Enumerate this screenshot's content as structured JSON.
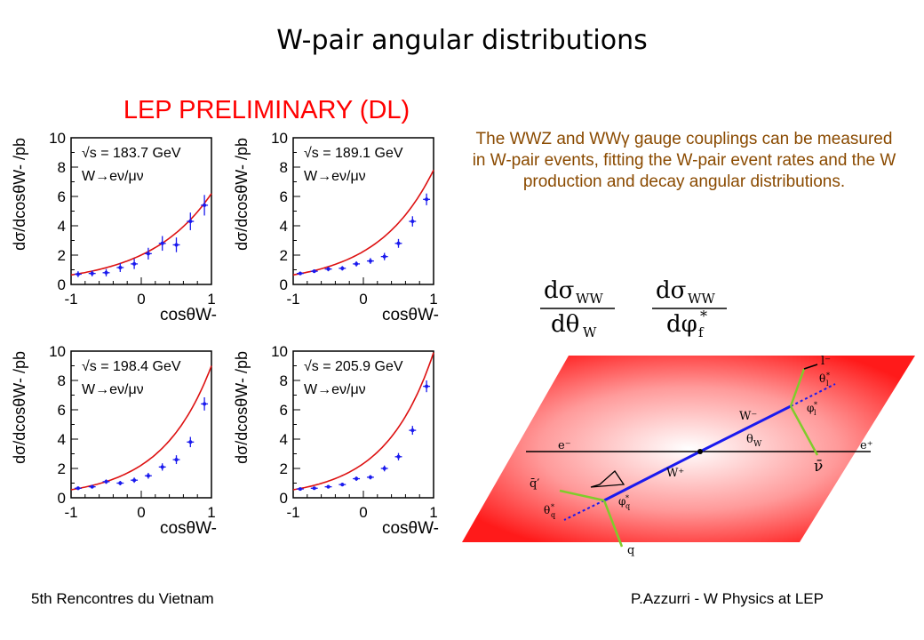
{
  "slide": {
    "title": "W-pair angular distributions",
    "subtitle": "LEP PRELIMINARY (DL)",
    "description": "The WWZ and WWγ gauge couplings can be measured in W-pair events, fitting the W-pair event rates and the W production and decay angular distributions.",
    "footer_left": "5th Rencontres du Vietnam",
    "footer_right": "P.Azzurri - W Physics at LEP",
    "formula1": {
      "numerator": "dσ",
      "num_sub": "WW",
      "denominator": "dθ",
      "den_sub": "W"
    },
    "formula2": {
      "numerator": "dσ",
      "num_sub": "WW",
      "denominator": "dφ",
      "den_sub": "f",
      "den_sup": "*"
    },
    "diagram": {
      "labels": [
        "e⁻",
        "e⁺",
        "W⁻",
        "W⁺",
        "θ",
        "W",
        "q",
        "q̄′",
        "ν̄",
        "l⁻",
        "θ",
        "l",
        "*",
        "φ",
        "l",
        "*",
        "θ",
        "q",
        "*",
        "φ",
        "q",
        "*"
      ],
      "colors": {
        "plane": "#ff1a1a",
        "plane_center": "#ffffff",
        "w_line": "#1a1aee",
        "decay_line": "#7fcc2a"
      }
    }
  },
  "chart_data": [
    {
      "type": "scatter",
      "annotation_energy": "√s = 183.7 GeV",
      "annotation_channel": "W→eν/μν",
      "xlabel": "cosθW-",
      "ylabel": "dσ/dcosθW- /pb",
      "xlim": [
        -1,
        1
      ],
      "ylim": [
        0,
        10
      ],
      "xticks": [
        "-1",
        "0",
        "1"
      ],
      "yticks": [
        "0",
        "2",
        "4",
        "6",
        "8",
        "10"
      ],
      "x": [
        -0.9,
        -0.7,
        -0.5,
        -0.3,
        -0.1,
        0.1,
        0.3,
        0.5,
        0.7,
        0.9
      ],
      "y": [
        0.7,
        0.75,
        0.8,
        1.15,
        1.4,
        2.1,
        2.8,
        2.7,
        4.3,
        5.4
      ],
      "err": [
        0.2,
        0.2,
        0.25,
        0.3,
        0.35,
        0.4,
        0.5,
        0.5,
        0.6,
        0.7
      ],
      "curve_y_at_xm1": 0.65,
      "curve_y_at_x1": 6.2
    },
    {
      "type": "scatter",
      "annotation_energy": "√s = 189.1 GeV",
      "annotation_channel": "W→eν/μν",
      "xlabel": "cosθW-",
      "ylabel": "dσ/dcosθW- /pb",
      "xlim": [
        -1,
        1
      ],
      "ylim": [
        0,
        10
      ],
      "xticks": [
        "-1",
        "0",
        "1"
      ],
      "yticks": [
        "0",
        "2",
        "4",
        "6",
        "8",
        "10"
      ],
      "x": [
        -0.9,
        -0.7,
        -0.5,
        -0.3,
        -0.1,
        0.1,
        0.3,
        0.5,
        0.7,
        0.9
      ],
      "y": [
        0.75,
        0.9,
        1.05,
        1.1,
        1.4,
        1.6,
        1.9,
        2.8,
        4.3,
        5.8
      ],
      "err": [
        0.12,
        0.12,
        0.15,
        0.15,
        0.18,
        0.2,
        0.25,
        0.3,
        0.35,
        0.4
      ],
      "curve_y_at_xm1": 0.65,
      "curve_y_at_x1": 7.8
    },
    {
      "type": "scatter",
      "annotation_energy": "√s = 198.4 GeV",
      "annotation_channel": "W→eν/μν",
      "xlabel": "cosθW-",
      "ylabel": "dσ/dcosθW- /pb",
      "xlim": [
        -1,
        1
      ],
      "ylim": [
        0,
        10
      ],
      "xticks": [
        "-1",
        "0",
        "1"
      ],
      "yticks": [
        "0",
        "2",
        "4",
        "6",
        "8",
        "10"
      ],
      "x": [
        -0.9,
        -0.7,
        -0.5,
        -0.3,
        -0.1,
        0.1,
        0.3,
        0.5,
        0.7,
        0.9
      ],
      "y": [
        0.65,
        0.75,
        1.1,
        1.0,
        1.2,
        1.5,
        2.1,
        2.6,
        3.8,
        6.4
      ],
      "err": [
        0.12,
        0.12,
        0.15,
        0.15,
        0.18,
        0.2,
        0.25,
        0.3,
        0.35,
        0.45
      ],
      "curve_y_at_xm1": 0.55,
      "curve_y_at_x1": 9.0
    },
    {
      "type": "scatter",
      "annotation_energy": "√s = 205.9 GeV",
      "annotation_channel": "W→eν/μν",
      "xlabel": "cosθW-",
      "ylabel": "dσ/dcosθW- /pb",
      "xlim": [
        -1,
        1
      ],
      "ylim": [
        0,
        10
      ],
      "xticks": [
        "-1",
        "0",
        "1"
      ],
      "yticks": [
        "0",
        "2",
        "4",
        "6",
        "8",
        "10"
      ],
      "x": [
        -0.9,
        -0.7,
        -0.5,
        -0.3,
        -0.1,
        0.1,
        0.3,
        0.5,
        0.7,
        0.9
      ],
      "y": [
        0.6,
        0.65,
        0.75,
        0.9,
        1.3,
        1.4,
        2.0,
        2.8,
        4.6,
        7.6
      ],
      "err": [
        0.1,
        0.1,
        0.12,
        0.12,
        0.15,
        0.15,
        0.2,
        0.25,
        0.3,
        0.4
      ],
      "curve_y_at_xm1": 0.55,
      "curve_y_at_x1": 9.9
    }
  ]
}
